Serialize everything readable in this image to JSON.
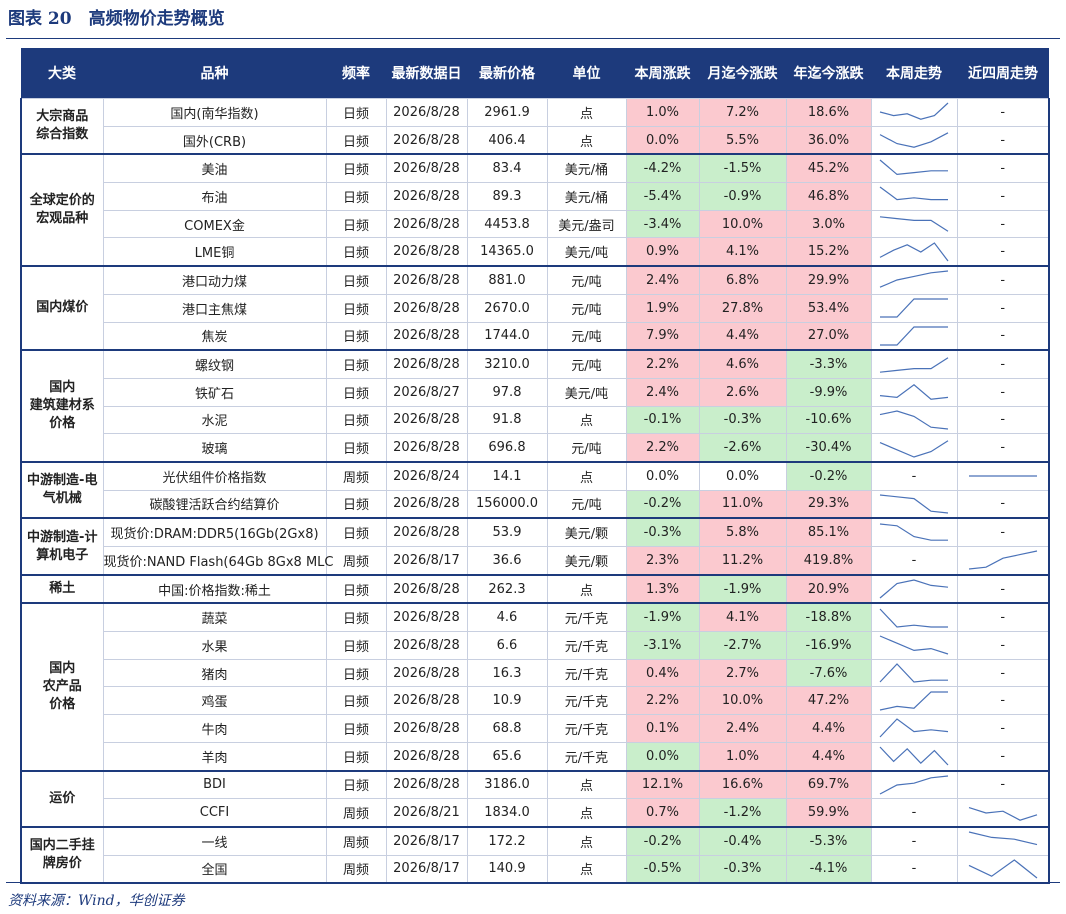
{
  "title": "图表 20　高频物价走势概览",
  "header": [
    "大类",
    "品种",
    "频率",
    "最新数据日",
    "最新价格",
    "单位",
    "本周涨跌",
    "月迄今涨跌",
    "年迄今涨跌",
    "本周走势",
    "近四周走势"
  ],
  "groups": [
    {
      "label": "大宗商品\n综合指数",
      "rows": [
        {
          "name": "国内(南华指数)",
          "freq": "日频",
          "date": "2026/8/28",
          "price": "2961.9",
          "unit": "点",
          "week": "1.0%",
          "month": "7.2%",
          "year": "18.6%",
          "colors": [
            "#fbc9cf",
            "#fbc9cf",
            "#fbc9cf"
          ],
          "week_trend": [
            5,
            3,
            4,
            1,
            3,
            10
          ],
          "four_week_trend": "-"
        },
        {
          "name": "国外(CRB)",
          "freq": "日频",
          "date": "2026/8/28",
          "price": "406.4",
          "unit": "点",
          "week": "0.0%",
          "month": "5.5%",
          "year": "36.0%",
          "colors": [
            "#fbc9cf",
            "#fbc9cf",
            "#fbc9cf"
          ],
          "week_trend": [
            8,
            3,
            1,
            4,
            9
          ],
          "four_week_trend": "-"
        }
      ]
    },
    {
      "label": "全球定价的\n宏观品种",
      "rows": [
        {
          "name": "美油",
          "freq": "日频",
          "date": "2026/8/28",
          "price": "83.4",
          "unit": "美元/桶",
          "week": "-4.2%",
          "month": "-1.5%",
          "year": "45.2%",
          "colors": [
            "#c9eecb",
            "#c9eecb",
            "#fbc9cf"
          ],
          "week_trend": [
            10,
            2,
            3,
            4,
            4
          ],
          "four_week_trend": "-"
        },
        {
          "name": "布油",
          "freq": "日频",
          "date": "2026/8/28",
          "price": "89.3",
          "unit": "美元/桶",
          "week": "-5.4%",
          "month": "-0.9%",
          "year": "46.8%",
          "colors": [
            "#c9eecb",
            "#c9eecb",
            "#fbc9cf"
          ],
          "week_trend": [
            10,
            3,
            4,
            3,
            3
          ],
          "four_week_trend": "-"
        },
        {
          "name": "COMEX金",
          "freq": "日频",
          "date": "2026/8/28",
          "price": "4453.8",
          "unit": "美元/盎司",
          "week": "-3.4%",
          "month": "10.0%",
          "year": "3.0%",
          "colors": [
            "#c9eecb",
            "#fbc9cf",
            "#fbc9cf"
          ],
          "week_trend": [
            9,
            8,
            7,
            7,
            1
          ],
          "four_week_trend": "-"
        },
        {
          "name": "LME铜",
          "freq": "日频",
          "date": "2026/8/28",
          "price": "14365.0",
          "unit": "美元/吨",
          "week": "0.9%",
          "month": "4.1%",
          "year": "15.2%",
          "colors": [
            "#fbc9cf",
            "#fbc9cf",
            "#fbc9cf"
          ],
          "week_trend": [
            2,
            6,
            9,
            5,
            10,
            0
          ],
          "four_week_trend": "-"
        }
      ]
    },
    {
      "label": "国内煤价",
      "rows": [
        {
          "name": "港口动力煤",
          "freq": "日频",
          "date": "2026/8/28",
          "price": "881.0",
          "unit": "元/吨",
          "week": "2.4%",
          "month": "6.8%",
          "year": "29.9%",
          "colors": [
            "#fbc9cf",
            "#fbc9cf",
            "#fbc9cf"
          ],
          "week_trend": [
            1,
            5,
            7,
            9,
            10
          ],
          "four_week_trend": "-"
        },
        {
          "name": "港口主焦煤",
          "freq": "日频",
          "date": "2026/8/28",
          "price": "2670.0",
          "unit": "元/吨",
          "week": "1.9%",
          "month": "27.8%",
          "year": "53.4%",
          "colors": [
            "#fbc9cf",
            "#fbc9cf",
            "#fbc9cf"
          ],
          "week_trend": [
            0,
            0,
            10,
            10,
            10
          ],
          "four_week_trend": "-"
        },
        {
          "name": "焦炭",
          "freq": "日频",
          "date": "2026/8/28",
          "price": "1744.0",
          "unit": "元/吨",
          "week": "7.9%",
          "month": "4.4%",
          "year": "27.0%",
          "colors": [
            "#fbc9cf",
            "#fbc9cf",
            "#fbc9cf"
          ],
          "week_trend": [
            0,
            0,
            10,
            10,
            10
          ],
          "four_week_trend": "-"
        }
      ]
    },
    {
      "label": "国内\n建筑建材系\n价格",
      "rows": [
        {
          "name": "螺纹钢",
          "freq": "日频",
          "date": "2026/8/28",
          "price": "3210.0",
          "unit": "元/吨",
          "week": "2.2%",
          "month": "4.6%",
          "year": "-3.3%",
          "colors": [
            "#fbc9cf",
            "#fbc9cf",
            "#c9eecb"
          ],
          "week_trend": [
            1,
            2,
            3,
            3,
            9
          ],
          "four_week_trend": "-"
        },
        {
          "name": "铁矿石",
          "freq": "日频",
          "date": "2026/8/27",
          "price": "97.8",
          "unit": "美元/吨",
          "week": "2.4%",
          "month": "2.6%",
          "year": "-9.9%",
          "colors": [
            "#fbc9cf",
            "#fbc9cf",
            "#c9eecb"
          ],
          "week_trend": [
            3,
            2,
            9,
            1,
            2
          ],
          "four_week_trend": "-"
        },
        {
          "name": "水泥",
          "freq": "日频",
          "date": "2026/8/28",
          "price": "91.8",
          "unit": "点",
          "week": "-0.1%",
          "month": "-0.3%",
          "year": "-10.6%",
          "colors": [
            "#c9eecb",
            "#c9eecb",
            "#c9eecb"
          ],
          "week_trend": [
            8,
            10,
            7,
            1,
            0
          ],
          "four_week_trend": "-"
        },
        {
          "name": "玻璃",
          "freq": "日频",
          "date": "2026/8/28",
          "price": "696.8",
          "unit": "元/吨",
          "week": "2.2%",
          "month": "-2.6%",
          "year": "-30.4%",
          "colors": [
            "#fbc9cf",
            "#c9eecb",
            "#c9eecb"
          ],
          "week_trend": [
            8,
            4,
            0,
            3,
            9
          ],
          "four_week_trend": "-"
        }
      ]
    },
    {
      "label": "中游制造-电\n气机械",
      "rows": [
        {
          "name": "光伏组件价格指数",
          "freq": "周频",
          "date": "2026/8/24",
          "price": "14.1",
          "unit": "点",
          "week": "0.0%",
          "month": "0.0%",
          "year": "-0.2%",
          "colors": [
            "#ffffff",
            "#ffffff",
            "#c9eecb"
          ],
          "week_trend": "-",
          "four_week_trend": [
            5,
            5,
            5,
            5
          ]
        },
        {
          "name": "碳酸锂活跃合约结算价",
          "freq": "日频",
          "date": "2026/8/28",
          "price": "156000.0",
          "unit": "元/吨",
          "week": "-0.2%",
          "month": "11.0%",
          "year": "29.3%",
          "colors": [
            "#c9eecb",
            "#fbc9cf",
            "#fbc9cf"
          ],
          "week_trend": [
            10,
            9,
            8,
            1,
            0
          ],
          "four_week_trend": "-"
        }
      ]
    },
    {
      "label": "中游制造-计\n算机电子",
      "rows": [
        {
          "name": "现货价:DRAM:DDR5(16Gb(2Gx8)",
          "freq": "日频",
          "date": "2026/8/28",
          "price": "53.9",
          "unit": "美元/颗",
          "week": "-0.3%",
          "month": "5.8%",
          "year": "85.1%",
          "colors": [
            "#c9eecb",
            "#fbc9cf",
            "#fbc9cf"
          ],
          "week_trend": [
            10,
            9,
            3,
            1,
            1
          ],
          "four_week_trend": "-"
        },
        {
          "name": "现货价:NAND Flash(64Gb 8Gx8 MLC",
          "freq": "周频",
          "date": "2026/8/17",
          "price": "36.6",
          "unit": "美元/颗",
          "week": "2.3%",
          "month": "11.2%",
          "year": "419.8%",
          "colors": [
            "#fbc9cf",
            "#fbc9cf",
            "#fbc9cf"
          ],
          "week_trend": "-",
          "four_week_trend": [
            0,
            1,
            6,
            8,
            10
          ]
        }
      ]
    },
    {
      "label": "稀土",
      "rows": [
        {
          "name": "中国:价格指数:稀土",
          "freq": "日频",
          "date": "2026/8/28",
          "price": "262.3",
          "unit": "点",
          "week": "1.3%",
          "month": "-1.9%",
          "year": "20.9%",
          "colors": [
            "#fbc9cf",
            "#c9eecb",
            "#fbc9cf"
          ],
          "week_trend": [
            0,
            8,
            10,
            7,
            6
          ],
          "four_week_trend": "-"
        }
      ]
    },
    {
      "label": "国内\n农产品\n价格",
      "rows": [
        {
          "name": "蔬菜",
          "freq": "日频",
          "date": "2026/8/28",
          "price": "4.6",
          "unit": "元/千克",
          "week": "-1.9%",
          "month": "4.1%",
          "year": "-18.8%",
          "colors": [
            "#c9eecb",
            "#fbc9cf",
            "#c9eecb"
          ],
          "week_trend": [
            10,
            0,
            1,
            0,
            0
          ],
          "four_week_trend": "-"
        },
        {
          "name": "水果",
          "freq": "日频",
          "date": "2026/8/28",
          "price": "6.6",
          "unit": "元/千克",
          "week": "-3.1%",
          "month": "-2.7%",
          "year": "-16.9%",
          "colors": [
            "#c9eecb",
            "#c9eecb",
            "#c9eecb"
          ],
          "week_trend": [
            10,
            6,
            2,
            3,
            0
          ],
          "four_week_trend": "-"
        },
        {
          "name": "猪肉",
          "freq": "日频",
          "date": "2026/8/28",
          "price": "16.3",
          "unit": "元/千克",
          "week": "0.4%",
          "month": "2.7%",
          "year": "-7.6%",
          "colors": [
            "#fbc9cf",
            "#fbc9cf",
            "#c9eecb"
          ],
          "week_trend": [
            0,
            10,
            0,
            1,
            1
          ],
          "four_week_trend": "-"
        },
        {
          "name": "鸡蛋",
          "freq": "日频",
          "date": "2026/8/28",
          "price": "10.9",
          "unit": "元/千克",
          "week": "2.2%",
          "month": "10.0%",
          "year": "47.2%",
          "colors": [
            "#fbc9cf",
            "#fbc9cf",
            "#fbc9cf"
          ],
          "week_trend": [
            0,
            2,
            1,
            10,
            10
          ],
          "four_week_trend": "-"
        },
        {
          "name": "牛肉",
          "freq": "日频",
          "date": "2026/8/28",
          "price": "68.8",
          "unit": "元/千克",
          "week": "0.1%",
          "month": "2.4%",
          "year": "4.4%",
          "colors": [
            "#fbc9cf",
            "#fbc9cf",
            "#fbc9cf"
          ],
          "week_trend": [
            0,
            10,
            3,
            4,
            3
          ],
          "four_week_trend": "-"
        },
        {
          "name": "羊肉",
          "freq": "日频",
          "date": "2026/8/28",
          "price": "65.6",
          "unit": "元/千克",
          "week": "0.0%",
          "month": "1.0%",
          "year": "4.4%",
          "colors": [
            "#c9eecb",
            "#fbc9cf",
            "#fbc9cf"
          ],
          "week_trend": [
            10,
            2,
            9,
            1,
            8,
            0
          ],
          "four_week_trend": "-"
        }
      ]
    },
    {
      "label": "运价",
      "rows": [
        {
          "name": "BDI",
          "freq": "日频",
          "date": "2026/8/28",
          "price": "3186.0",
          "unit": "点",
          "week": "12.1%",
          "month": "16.6%",
          "year": "69.7%",
          "colors": [
            "#fbc9cf",
            "#fbc9cf",
            "#fbc9cf"
          ],
          "week_trend": [
            0,
            5,
            6,
            9,
            10
          ],
          "four_week_trend": "-"
        },
        {
          "name": "CCFI",
          "freq": "周频",
          "date": "2026/8/21",
          "price": "1834.0",
          "unit": "点",
          "week": "0.7%",
          "month": "-1.2%",
          "year": "59.9%",
          "colors": [
            "#fbc9cf",
            "#c9eecb",
            "#fbc9cf"
          ],
          "week_trend": "-",
          "four_week_trend": [
            8,
            5,
            6,
            1,
            4
          ]
        }
      ]
    },
    {
      "label": "国内二手挂\n牌房价",
      "rows": [
        {
          "name": "一线",
          "freq": "周频",
          "date": "2026/8/17",
          "price": "172.2",
          "unit": "点",
          "week": "-0.2%",
          "month": "-0.4%",
          "year": "-5.3%",
          "colors": [
            "#c9eecb",
            "#c9eecb",
            "#c9eecb"
          ],
          "week_trend": "-",
          "four_week_trend": [
            10,
            7,
            6,
            3
          ]
        },
        {
          "name": "全国",
          "freq": "周频",
          "date": "2026/8/17",
          "price": "140.9",
          "unit": "点",
          "week": "-0.5%",
          "month": "-0.3%",
          "year": "-4.1%",
          "colors": [
            "#c9eecb",
            "#c9eecb",
            "#c9eecb"
          ],
          "week_trend": "-",
          "four_week_trend": [
            7,
            1,
            10,
            0
          ]
        }
      ]
    }
  ],
  "source": "资料来源：Wind，华创证券"
}
